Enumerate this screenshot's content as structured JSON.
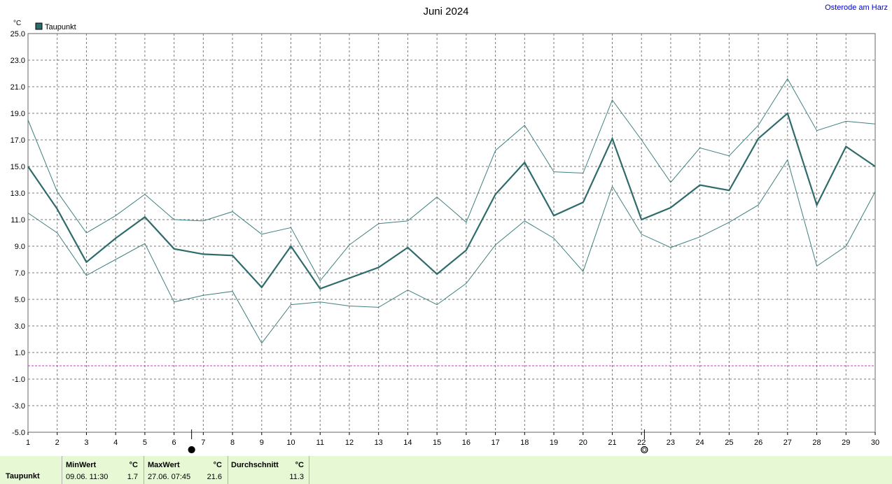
{
  "header": {
    "station": "Osterode am Harz"
  },
  "colors": {
    "series": "#2f6b6b",
    "envelope": "#3f8080",
    "grid": "#7a7a7a",
    "zero_line": "#cc33cc",
    "footer_bg": "#e6f9d4"
  },
  "chart_data": {
    "type": "line",
    "title": "Juni 2024",
    "unit": "°C",
    "ylim": [
      -5,
      25
    ],
    "y_ticks": [
      "25.0",
      "23.0",
      "21.0",
      "19.0",
      "17.0",
      "15.0",
      "13.0",
      "11.0",
      "9.0",
      "7.0",
      "5.0",
      "3.0",
      "1.0",
      "-1.0",
      "-3.0",
      "-5.0"
    ],
    "x": [
      1,
      2,
      3,
      4,
      5,
      6,
      7,
      8,
      9,
      10,
      11,
      12,
      13,
      14,
      15,
      16,
      17,
      18,
      19,
      20,
      21,
      22,
      23,
      24,
      25,
      26,
      27,
      28,
      29,
      30
    ],
    "legend": [
      "Taupunkt"
    ],
    "series": [
      {
        "name": "Taupunkt",
        "values": [
          15.0,
          11.8,
          7.8,
          9.6,
          11.2,
          8.8,
          8.4,
          8.3,
          5.9,
          9.0,
          5.8,
          6.6,
          7.4,
          8.9,
          6.9,
          8.7,
          12.9,
          15.3,
          11.3,
          12.3,
          17.1,
          11.0,
          11.9,
          13.6,
          13.2,
          17.1,
          19.0,
          12.1,
          16.5,
          15.0
        ]
      },
      {
        "values": [
          18.5,
          13.1,
          10.0,
          11.3,
          12.9,
          11.0,
          10.9,
          11.6,
          9.9,
          10.4,
          6.4,
          9.1,
          10.7,
          10.9,
          12.7,
          10.8,
          16.2,
          18.1,
          14.6,
          14.5,
          20.0,
          17.0,
          13.8,
          16.4,
          15.8,
          18.1,
          21.6,
          17.7,
          18.4,
          18.2
        ]
      },
      {
        "values": [
          11.5,
          10.0,
          6.8,
          8.0,
          9.2,
          4.8,
          5.3,
          5.6,
          1.7,
          4.6,
          4.8,
          4.5,
          4.4,
          5.7,
          4.6,
          6.2,
          9.1,
          10.9,
          9.6,
          7.1,
          13.5,
          9.9,
          8.9,
          9.7,
          10.8,
          12.1,
          15.5,
          7.5,
          9.0,
          13.1
        ]
      }
    ],
    "zero_line": 0,
    "grid": true,
    "legend_position": "top-left",
    "moon_markers": [
      {
        "day": 6.6,
        "phase": "new-moon"
      },
      {
        "day": 22.1,
        "phase": "full-moon"
      }
    ]
  },
  "footer": {
    "row_label": "Taupunkt",
    "min": {
      "label": "MinWert",
      "unit": "°C",
      "datetime": "09.06.  11:30",
      "value": "1.7"
    },
    "max": {
      "label": "MaxWert",
      "unit": "°C",
      "datetime": "27.06.  07:45",
      "value": "21.6"
    },
    "avg": {
      "label": "Durchschnitt",
      "unit": "°C",
      "value": "11.3"
    }
  }
}
